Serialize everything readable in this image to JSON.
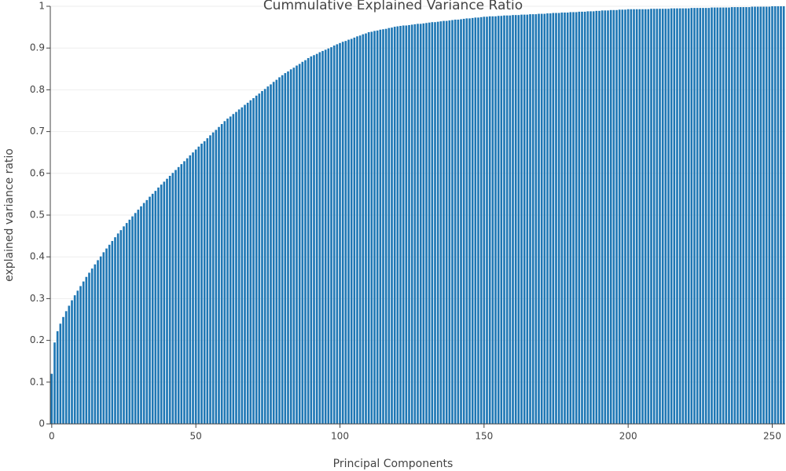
{
  "chart_data": {
    "type": "bar",
    "title": "Cummulative Explained Variance Ratio",
    "xlabel": "Principal Components",
    "ylabel": "explained variance ratio",
    "color": "#1f77b4",
    "grid": true,
    "xlim": [
      -0.5,
      254.5
    ],
    "ylim": [
      0,
      1
    ],
    "xticks": [
      0,
      50,
      100,
      150,
      200,
      250
    ],
    "yticks": [
      0,
      0.1,
      0.2,
      0.3,
      0.4,
      0.5,
      0.6,
      0.7,
      0.8,
      0.9,
      1
    ],
    "x": [
      0,
      1,
      2,
      3,
      4,
      5,
      6,
      7,
      8,
      9,
      10,
      11,
      12,
      13,
      14,
      15,
      16,
      17,
      18,
      19,
      20,
      21,
      22,
      23,
      24,
      25,
      26,
      27,
      28,
      29,
      30,
      31,
      32,
      33,
      34,
      35,
      36,
      37,
      38,
      39,
      40,
      41,
      42,
      43,
      44,
      45,
      46,
      47,
      48,
      49,
      50,
      51,
      52,
      53,
      54,
      55,
      56,
      57,
      58,
      59,
      60,
      61,
      62,
      63,
      64,
      65,
      66,
      67,
      68,
      69,
      70,
      71,
      72,
      73,
      74,
      75,
      76,
      77,
      78,
      79,
      80,
      81,
      82,
      83,
      84,
      85,
      86,
      87,
      88,
      89,
      90,
      91,
      92,
      93,
      94,
      95,
      96,
      97,
      98,
      99,
      100,
      101,
      102,
      103,
      104,
      105,
      106,
      107,
      108,
      109,
      110,
      111,
      112,
      113,
      114,
      115,
      116,
      117,
      118,
      119,
      120,
      121,
      122,
      123,
      124,
      125,
      126,
      127,
      128,
      129,
      130,
      131,
      132,
      133,
      134,
      135,
      136,
      137,
      138,
      139,
      140,
      141,
      142,
      143,
      144,
      145,
      146,
      147,
      148,
      149,
      150,
      151,
      152,
      153,
      154,
      155,
      156,
      157,
      158,
      159,
      160,
      161,
      162,
      163,
      164,
      165,
      166,
      167,
      168,
      169,
      170,
      171,
      172,
      173,
      174,
      175,
      176,
      177,
      178,
      179,
      180,
      181,
      182,
      183,
      184,
      185,
      186,
      187,
      188,
      189,
      190,
      191,
      192,
      193,
      194,
      195,
      196,
      197,
      198,
      199,
      200,
      201,
      202,
      203,
      204,
      205,
      206,
      207,
      208,
      209,
      210,
      211,
      212,
      213,
      214,
      215,
      216,
      217,
      218,
      219,
      220,
      221,
      222,
      223,
      224,
      225,
      226,
      227,
      228,
      229,
      230,
      231,
      232,
      233,
      234,
      235,
      236,
      237,
      238,
      239,
      240,
      241,
      242,
      243,
      244,
      245,
      246,
      247,
      248,
      249,
      250,
      251,
      252,
      253,
      254
    ],
    "values": [
      0.12,
      0.195,
      0.222,
      0.24,
      0.256,
      0.27,
      0.283,
      0.296,
      0.308,
      0.319,
      0.33,
      0.341,
      0.352,
      0.362,
      0.372,
      0.382,
      0.392,
      0.401,
      0.411,
      0.42,
      0.429,
      0.438,
      0.447,
      0.456,
      0.464,
      0.473,
      0.481,
      0.489,
      0.497,
      0.505,
      0.513,
      0.521,
      0.529,
      0.536,
      0.544,
      0.551,
      0.558,
      0.566,
      0.573,
      0.58,
      0.587,
      0.594,
      0.601,
      0.608,
      0.615,
      0.622,
      0.629,
      0.636,
      0.643,
      0.65,
      0.657,
      0.664,
      0.671,
      0.677,
      0.684,
      0.691,
      0.698,
      0.704,
      0.711,
      0.718,
      0.725,
      0.731,
      0.736,
      0.742,
      0.747,
      0.753,
      0.758,
      0.764,
      0.769,
      0.775,
      0.78,
      0.786,
      0.791,
      0.797,
      0.802,
      0.808,
      0.813,
      0.819,
      0.824,
      0.83,
      0.835,
      0.84,
      0.844,
      0.849,
      0.853,
      0.858,
      0.862,
      0.867,
      0.871,
      0.876,
      0.88,
      0.883,
      0.886,
      0.89,
      0.893,
      0.896,
      0.899,
      0.902,
      0.906,
      0.909,
      0.912,
      0.915,
      0.917,
      0.92,
      0.922,
      0.925,
      0.928,
      0.93,
      0.933,
      0.935,
      0.938,
      0.939,
      0.941,
      0.942,
      0.944,
      0.945,
      0.946,
      0.948,
      0.949,
      0.951,
      0.952,
      0.953,
      0.954,
      0.954,
      0.955,
      0.956,
      0.957,
      0.958,
      0.958,
      0.959,
      0.96,
      0.961,
      0.962,
      0.962,
      0.963,
      0.964,
      0.965,
      0.965,
      0.966,
      0.967,
      0.968,
      0.968,
      0.969,
      0.97,
      0.971,
      0.971,
      0.972,
      0.973,
      0.973,
      0.974,
      0.975,
      0.975,
      0.976,
      0.976,
      0.976,
      0.977,
      0.977,
      0.978,
      0.978,
      0.978,
      0.979,
      0.979,
      0.979,
      0.98,
      0.98,
      0.98,
      0.981,
      0.981,
      0.981,
      0.982,
      0.982,
      0.982,
      0.983,
      0.983,
      0.984,
      0.984,
      0.984,
      0.985,
      0.985,
      0.985,
      0.986,
      0.986,
      0.986,
      0.987,
      0.987,
      0.987,
      0.988,
      0.988,
      0.988,
      0.989,
      0.989,
      0.99,
      0.99,
      0.99,
      0.991,
      0.991,
      0.991,
      0.992,
      0.992,
      0.992,
      0.993,
      0.993,
      0.993,
      0.993,
      0.993,
      0.993,
      0.993,
      0.993,
      0.994,
      0.994,
      0.994,
      0.994,
      0.994,
      0.994,
      0.994,
      0.995,
      0.995,
      0.995,
      0.995,
      0.995,
      0.995,
      0.995,
      0.996,
      0.996,
      0.996,
      0.996,
      0.996,
      0.996,
      0.996,
      0.997,
      0.997,
      0.997,
      0.997,
      0.997,
      0.997,
      0.997,
      0.998,
      0.998,
      0.998,
      0.998,
      0.998,
      0.998,
      0.998,
      0.999,
      0.999,
      0.999,
      0.999,
      0.999,
      0.999,
      0.999,
      1,
      1,
      1,
      1,
      1
    ]
  }
}
